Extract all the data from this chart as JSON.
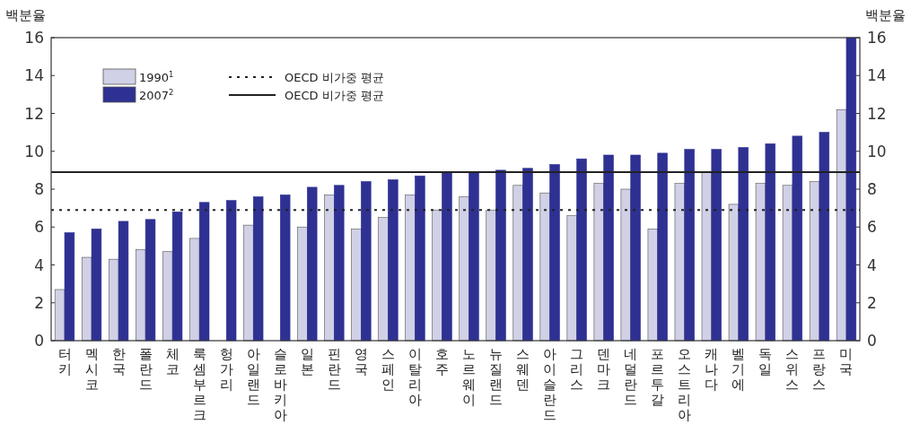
{
  "chart_data": {
    "type": "bar",
    "ylabel": "백분율",
    "y2label": "백분율",
    "categories": [
      "터키",
      "멕시코",
      "한국",
      "폴란드",
      "체코",
      "룩셈부르크",
      "헝가리",
      "아일랜드",
      "슬로바키아",
      "일본",
      "핀란드",
      "영국",
      "스페인",
      "이탈리아",
      "호주",
      "노르웨이",
      "뉴질랜드",
      "스웨덴",
      "아이슬란드",
      "그리스",
      "덴마크",
      "네덜란드",
      "포르투갈",
      "오스트리아",
      "캐나다",
      "벨기에",
      "독일",
      "스위스",
      "프랑스",
      "미국"
    ],
    "series": [
      {
        "name": "1990$^{1}$",
        "color": "#d0d0e6",
        "values": [
          2.7,
          4.4,
          4.3,
          4.8,
          4.7,
          5.4,
          null,
          6.1,
          null,
          6.0,
          7.7,
          5.9,
          6.5,
          7.7,
          6.9,
          7.6,
          6.9,
          8.2,
          7.8,
          6.6,
          8.3,
          8.0,
          5.9,
          8.3,
          8.9,
          7.2,
          8.3,
          8.2,
          8.4,
          12.2
        ]
      },
      {
        "name": "2007$^{2}$",
        "color": "#2e3192",
        "values": [
          5.7,
          5.9,
          6.3,
          6.4,
          6.8,
          7.3,
          7.4,
          7.6,
          7.7,
          8.1,
          8.2,
          8.4,
          8.5,
          8.7,
          8.9,
          8.9,
          9.0,
          9.1,
          9.3,
          9.6,
          9.8,
          9.8,
          9.9,
          10.1,
          10.1,
          10.2,
          10.4,
          10.8,
          11.0,
          16.0
        ]
      }
    ],
    "ylim": [
      0,
      16
    ],
    "yticks": [
      0,
      2,
      4,
      6,
      8,
      10,
      12,
      14,
      16
    ],
    "y2lim": [
      0,
      16
    ],
    "y2ticks": [
      0,
      2,
      4,
      6,
      8,
      10,
      12,
      14,
      16
    ],
    "ref_lines": [
      {
        "axis": "y",
        "value": 6.9,
        "label": "OECD 비가중 평균",
        "line_style": "dotted",
        "color": "#222222"
      },
      {
        "axis": "y",
        "value": 8.9,
        "label": "OECD 비가중 평균",
        "line_style": "solid",
        "color": "#222222"
      }
    ],
    "grid": false,
    "legend": "top left"
  }
}
